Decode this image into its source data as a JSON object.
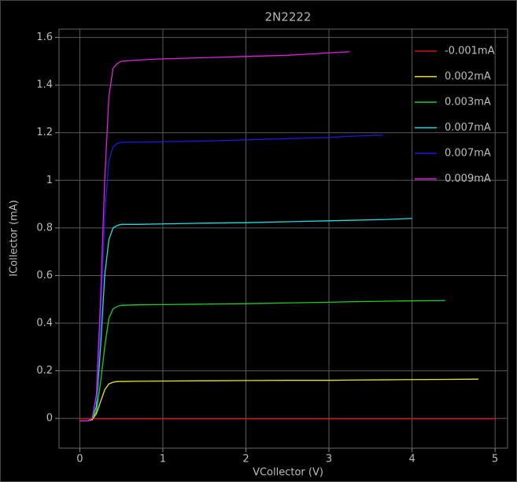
{
  "chart_data": {
    "type": "line",
    "title": "2N2222",
    "x_label": "VCollector (V)",
    "y_label": "ICollector (mA)",
    "x": [
      0,
      0.1,
      0.15,
      0.2,
      0.25,
      0.3,
      0.35,
      0.4,
      0.45,
      0.5,
      0.7,
      1,
      1.5,
      2,
      2.5,
      3,
      3.25,
      3.65,
      4,
      4.4,
      4.8,
      5
    ],
    "series": [
      {
        "name": "-0.001mA",
        "color": "#d01010",
        "values": [
          -0.002,
          -0.002,
          -0.002,
          -0.002,
          -0.002,
          -0.002,
          -0.002,
          -0.002,
          -0.002,
          -0.002,
          -0.002,
          -0.002,
          -0.002,
          -0.002,
          -0.002,
          -0.002,
          -0.002,
          -0.002,
          -0.002,
          -0.002,
          -0.002,
          -0.002
        ]
      },
      {
        "name": "0.002mA",
        "color": "#e8e81a",
        "values": [
          -0.01,
          -0.01,
          -0.005,
          0.02,
          0.07,
          0.12,
          0.145,
          0.152,
          0.155,
          0.155,
          0.156,
          0.157,
          0.158,
          0.159,
          0.16,
          0.16,
          0.161,
          0.162,
          0.163,
          0.164,
          0.165,
          null
        ]
      },
      {
        "name": "0.003mA",
        "color": "#22cc22",
        "values": [
          -0.01,
          -0.01,
          0,
          0.03,
          0.15,
          0.3,
          0.42,
          0.46,
          0.47,
          0.475,
          0.477,
          0.478,
          0.48,
          0.482,
          0.485,
          0.488,
          0.49,
          0.492,
          0.494,
          0.495,
          null,
          null
        ]
      },
      {
        "name": "0.007mA",
        "color": "#22dddd",
        "values": [
          -0.01,
          -0.01,
          0,
          0.05,
          0.3,
          0.6,
          0.75,
          0.8,
          0.81,
          0.815,
          0.815,
          0.817,
          0.82,
          0.822,
          0.826,
          0.83,
          0.832,
          0.835,
          0.84,
          null,
          null,
          null
        ]
      },
      {
        "name": "0.007mA",
        "color": "#1a1ae0",
        "values": [
          -0.01,
          -0.01,
          0,
          0.08,
          0.4,
          0.85,
          1.08,
          1.14,
          1.155,
          1.16,
          1.16,
          1.162,
          1.165,
          1.17,
          1.175,
          1.18,
          1.185,
          1.19,
          null,
          null,
          null,
          null
        ]
      },
      {
        "name": "0.009mA",
        "color": "#dd22dd",
        "values": [
          -0.01,
          -0.01,
          0,
          0.1,
          0.5,
          1.0,
          1.35,
          1.47,
          1.49,
          1.5,
          1.505,
          1.51,
          1.515,
          1.52,
          1.525,
          1.535,
          1.54,
          null,
          null,
          null,
          null,
          null
        ]
      }
    ],
    "xlim": [
      -0.25,
      5.15
    ],
    "ylim": [
      -0.125,
      1.635
    ],
    "xticks": [
      0,
      1,
      2,
      3,
      4,
      5
    ],
    "yticks": [
      0,
      0.2,
      0.4,
      0.6,
      0.8,
      1,
      1.2,
      1.4,
      1.6
    ],
    "grid": true,
    "legend": "top-right"
  }
}
